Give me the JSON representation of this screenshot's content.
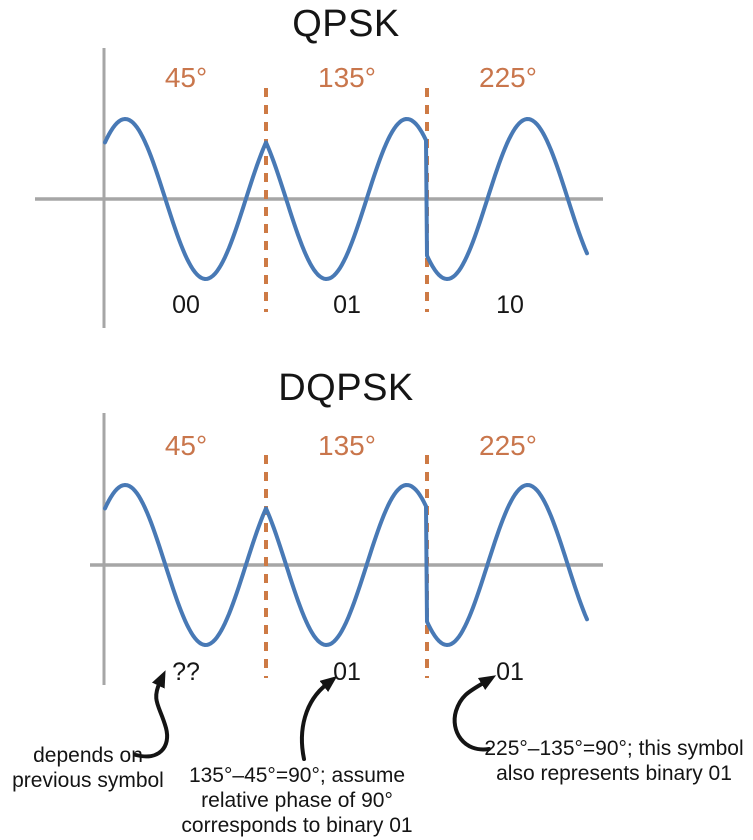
{
  "colors": {
    "wave": "#4879B5",
    "accent": "#C9764C",
    "axis": "#A6A6A6",
    "ink": "#141414"
  },
  "charts": [
    {
      "title": "QPSK",
      "segments": [
        {
          "phase_label": "45°",
          "phase_deg": 45,
          "symbol_label": "00"
        },
        {
          "phase_label": "135°",
          "phase_deg": 135,
          "symbol_label": "01"
        },
        {
          "phase_label": "225°",
          "phase_deg": 225,
          "symbol_label": "10"
        }
      ]
    },
    {
      "title": "DQPSK",
      "segments": [
        {
          "phase_label": "45°",
          "phase_deg": 45,
          "symbol_label": "??"
        },
        {
          "phase_label": "135°",
          "phase_deg": 135,
          "symbol_label": "01"
        },
        {
          "phase_label": "225°",
          "phase_deg": 225,
          "symbol_label": "01"
        }
      ],
      "annotations": [
        {
          "lines": [
            "depends on",
            "previous symbol"
          ]
        },
        {
          "lines": [
            "135°–45°=90°; assume",
            "relative phase of 90°",
            "corresponds to binary 01"
          ]
        },
        {
          "lines": [
            "225°–135°=90°; this symbol",
            "also represents binary 01"
          ]
        }
      ]
    }
  ],
  "wave_model": {
    "cycles_per_symbol": 1,
    "amplitude_relative": 1,
    "note_phases_deg": [
      45,
      135,
      225
    ]
  }
}
